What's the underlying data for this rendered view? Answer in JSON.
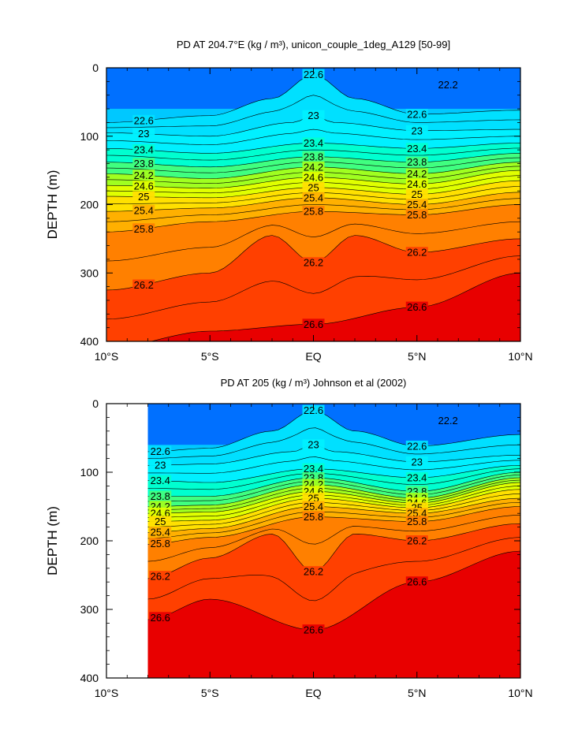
{
  "chart_data": [
    {
      "type": "contour",
      "title": "PD AT 204.7°E (kg / m³), unicon_couple_1deg_A129 [50-99]",
      "xlabel": "",
      "ylabel": "DEPTH (m)",
      "xlim": [
        -10,
        10
      ],
      "ylim": [
        400,
        0
      ],
      "x_ticks": [
        -10,
        -5,
        0,
        5,
        10
      ],
      "x_tick_labels": [
        "10°S",
        "5°S",
        "EQ",
        "5°N",
        "10°N"
      ],
      "y_ticks": [
        0,
        100,
        200,
        300,
        400
      ],
      "y_tick_labels": [
        "0",
        "100",
        "200",
        "300",
        "400"
      ],
      "data_lon_range": [
        -10,
        10
      ],
      "contour_interval": 0.2,
      "isopycnals": [
        {
          "value": 22.6,
          "label": "22.6",
          "depth_at": [
            [
              -10,
              80
            ],
            [
              -5,
              70
            ],
            [
              -2,
              45
            ],
            [
              0,
              10
            ],
            [
              2,
              45
            ],
            [
              5,
              68
            ],
            [
              10,
              62
            ]
          ]
        },
        {
          "value": 23.0,
          "label": "23",
          "depth_at": [
            [
              -10,
              95
            ],
            [
              -5,
              100
            ],
            [
              -1,
              80
            ],
            [
              0,
              70
            ],
            [
              1,
              80
            ],
            [
              5,
              92
            ],
            [
              10,
              90
            ]
          ]
        },
        {
          "value": 23.4,
          "label": "23.4",
          "depth_at": [
            [
              -10,
              118
            ],
            [
              -5,
              125
            ],
            [
              0,
              110
            ],
            [
              5,
              118
            ],
            [
              10,
              110
            ]
          ]
        },
        {
          "value": 23.8,
          "label": "23.8",
          "depth_at": [
            [
              -10,
              138
            ],
            [
              -5,
              145
            ],
            [
              0,
              130
            ],
            [
              5,
              138
            ],
            [
              10,
              125
            ]
          ]
        },
        {
          "value": 24.2,
          "label": "24.2",
          "depth_at": [
            [
              -10,
              155
            ],
            [
              -5,
              162
            ],
            [
              0,
              145
            ],
            [
              5,
              155
            ],
            [
              10,
              138
            ]
          ]
        },
        {
          "value": 24.6,
          "label": "24.6",
          "depth_at": [
            [
              -10,
              172
            ],
            [
              -5,
              176
            ],
            [
              0,
              160
            ],
            [
              5,
              170
            ],
            [
              10,
              150
            ]
          ]
        },
        {
          "value": 25.0,
          "label": "25",
          "depth_at": [
            [
              -10,
              188
            ],
            [
              -5,
              190
            ],
            [
              0,
              175
            ],
            [
              5,
              185
            ],
            [
              10,
              165
            ]
          ]
        },
        {
          "value": 25.4,
          "label": "25.4",
          "depth_at": [
            [
              -10,
              210
            ],
            [
              -5,
              205
            ],
            [
              0,
              190
            ],
            [
              5,
              200
            ],
            [
              10,
              182
            ]
          ]
        },
        {
          "value": 25.8,
          "label": "25.8",
          "depth_at": [
            [
              -10,
              240
            ],
            [
              -5,
              225
            ],
            [
              0,
              210
            ],
            [
              5,
              215
            ],
            [
              10,
              200
            ]
          ]
        },
        {
          "value": 26.2,
          "label": "26.2",
          "depth_at": [
            [
              -10,
              325
            ],
            [
              -5,
              300
            ],
            [
              -2,
              245
            ],
            [
              0,
              285
            ],
            [
              2,
              245
            ],
            [
              5,
              270
            ],
            [
              10,
              250
            ]
          ]
        },
        {
          "value": 26.6,
          "label": "26.6",
          "depth_at": [
            [
              -10,
              410
            ],
            [
              -5,
              385
            ],
            [
              0,
              375
            ],
            [
              5,
              350
            ],
            [
              10,
              300
            ]
          ]
        }
      ],
      "inline_labels": [
        "22.2",
        "22.6",
        "23",
        "23",
        "23.4",
        "23.8",
        "24.2",
        "24.6",
        "25",
        "25.4",
        "25.8",
        "26.2",
        "26.6",
        "23",
        "23.4",
        "23.8",
        "24.2",
        "24.6",
        "25",
        "25.4",
        "25.8",
        "26.2",
        "26.6",
        "22.6",
        "23",
        "23.4",
        "23.8",
        "24.2",
        "24.6",
        "25",
        "25.4",
        "25.8",
        "26.2",
        "26.6"
      ]
    },
    {
      "type": "contour",
      "title": "PD AT 205 (kg / m³) Johnson et al (2002)",
      "xlabel": "",
      "ylabel": "DEPTH (m)",
      "xlim": [
        -10,
        10
      ],
      "ylim": [
        400,
        0
      ],
      "x_ticks": [
        -10,
        -5,
        0,
        5,
        10
      ],
      "x_tick_labels": [
        "10°S",
        "5°S",
        "EQ",
        "5°N",
        "10°N"
      ],
      "y_ticks": [
        0,
        100,
        200,
        300,
        400
      ],
      "y_tick_labels": [
        "0",
        "100",
        "200",
        "300",
        "400"
      ],
      "data_lon_range": [
        -8,
        10
      ],
      "contour_interval": 0.2,
      "isopycnals": [
        {
          "value": 22.6,
          "label": "22.6",
          "depth_at": [
            [
              -8,
              70
            ],
            [
              -5,
              65
            ],
            [
              -2,
              40
            ],
            [
              0,
              10
            ],
            [
              2,
              40
            ],
            [
              5,
              62
            ],
            [
              10,
              45
            ]
          ]
        },
        {
          "value": 23.0,
          "label": "23",
          "depth_at": [
            [
              -8,
              90
            ],
            [
              -5,
              88
            ],
            [
              -1,
              70
            ],
            [
              0,
              60
            ],
            [
              1,
              70
            ],
            [
              5,
              85
            ],
            [
              10,
              75
            ]
          ]
        },
        {
          "value": 23.4,
          "label": "23.4",
          "depth_at": [
            [
              -8,
              112
            ],
            [
              -5,
              115
            ],
            [
              0,
              95
            ],
            [
              5,
              108
            ],
            [
              10,
              90
            ]
          ]
        },
        {
          "value": 23.8,
          "label": "23.8",
          "depth_at": [
            [
              -8,
              135
            ],
            [
              -5,
              135
            ],
            [
              0,
              108
            ],
            [
              5,
              128
            ],
            [
              10,
              100
            ]
          ]
        },
        {
          "value": 24.2,
          "label": "24.2",
          "depth_at": [
            [
              -8,
              150
            ],
            [
              -5,
              148
            ],
            [
              0,
              118
            ],
            [
              5,
              138
            ],
            [
              10,
              108
            ]
          ]
        },
        {
          "value": 24.6,
          "label": "24.6",
          "depth_at": [
            [
              -8,
              160
            ],
            [
              -5,
              158
            ],
            [
              0,
              128
            ],
            [
              5,
              145
            ],
            [
              10,
              115
            ]
          ]
        },
        {
          "value": 25.0,
          "label": "25",
          "depth_at": [
            [
              -8,
              172
            ],
            [
              -5,
              170
            ],
            [
              0,
              138
            ],
            [
              5,
              152
            ],
            [
              10,
              125
            ]
          ]
        },
        {
          "value": 25.4,
          "label": "25.4",
          "depth_at": [
            [
              -8,
              188
            ],
            [
              -5,
              182
            ],
            [
              0,
              150
            ],
            [
              5,
              160
            ],
            [
              10,
              138
            ]
          ]
        },
        {
          "value": 25.8,
          "label": "25.8",
          "depth_at": [
            [
              -8,
              205
            ],
            [
              -5,
              195
            ],
            [
              0,
              165
            ],
            [
              5,
              172
            ],
            [
              10,
              150
            ]
          ]
        },
        {
          "value": 26.2,
          "label": "26.2",
          "depth_at": [
            [
              -8,
              255
            ],
            [
              -5,
              225
            ],
            [
              -2,
              190
            ],
            [
              0,
              245
            ],
            [
              2,
              190
            ],
            [
              5,
              200
            ],
            [
              10,
              175
            ]
          ]
        },
        {
          "value": 26.6,
          "label": "26.6",
          "depth_at": [
            [
              -8,
              315
            ],
            [
              -5,
              285
            ],
            [
              0,
              330
            ],
            [
              5,
              260
            ],
            [
              10,
              215
            ]
          ]
        }
      ],
      "inline_labels": [
        "22.2",
        "22.6",
        "23",
        "23",
        "23.4",
        "23.8",
        "24.2",
        "24.6",
        "25",
        "25.4",
        "25.8",
        "26.2",
        "26.6",
        "23",
        "23.4",
        "23.8",
        "24.2",
        "24.6",
        "25",
        "25.4",
        "25.8",
        "26.2",
        "26.6",
        "22.6",
        "23",
        "23.4",
        "23.8",
        "24.2",
        "24.6",
        "25",
        "25.4",
        "25.8",
        "26.2",
        "26.6"
      ]
    }
  ],
  "colors": {
    "band_fills": [
      "#c800c8",
      "#a000e0",
      "#0000ff",
      "#0064ff",
      "#00b4ff",
      "#00e6ff",
      "#00ffdc",
      "#00ff78",
      "#64ff00",
      "#d2ff00",
      "#ffff00",
      "#ffb400",
      "#ff7800",
      "#ff3c00",
      "#ee0000",
      "#cc0000"
    ],
    "contour_line": "#000000"
  }
}
